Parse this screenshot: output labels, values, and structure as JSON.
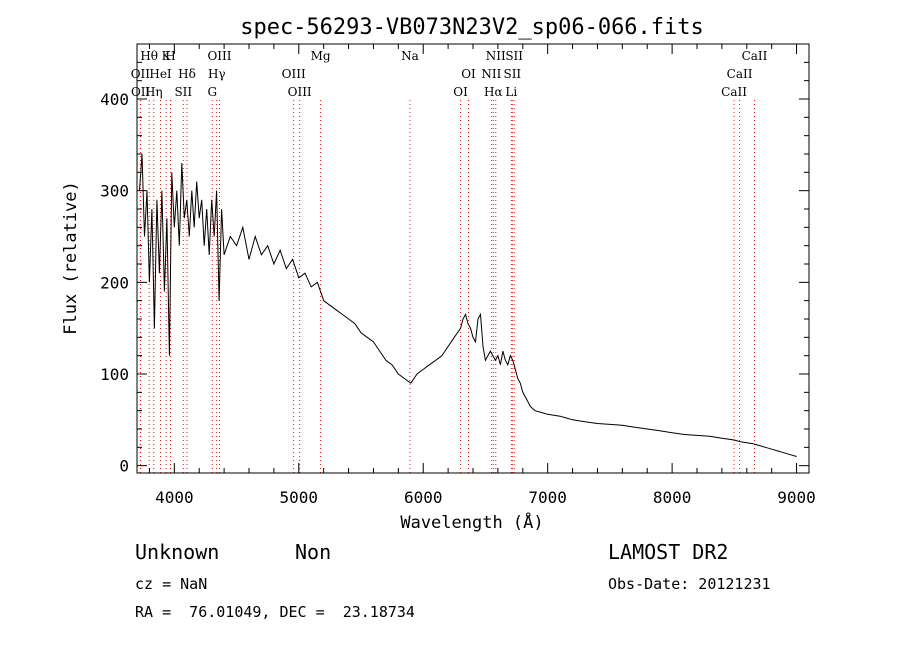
{
  "chart_data": {
    "type": "line",
    "title": "spec-56293-VB073N23V2_sp06-066.fits",
    "xlabel": "Wavelength (Å)",
    "ylabel": "Flux (relative)",
    "xlim": [
      3700,
      9100
    ],
    "ylim": [
      -8,
      460
    ],
    "xticks": [
      4000,
      5000,
      6000,
      7000,
      8000,
      9000
    ],
    "yticks": [
      0,
      100,
      200,
      300,
      400
    ],
    "grid": false,
    "spectrum": {
      "x": [
        3720,
        3740,
        3760,
        3780,
        3800,
        3820,
        3840,
        3860,
        3880,
        3900,
        3920,
        3940,
        3960,
        3980,
        4000,
        4020,
        4040,
        4060,
        4080,
        4100,
        4120,
        4140,
        4160,
        4180,
        4200,
        4220,
        4240,
        4260,
        4280,
        4300,
        4320,
        4340,
        4360,
        4380,
        4400,
        4450,
        4500,
        4550,
        4600,
        4650,
        4700,
        4750,
        4800,
        4850,
        4900,
        4950,
        5000,
        5050,
        5100,
        5150,
        5200,
        5250,
        5300,
        5350,
        5400,
        5450,
        5500,
        5550,
        5600,
        5650,
        5700,
        5750,
        5800,
        5850,
        5900,
        5950,
        6000,
        6050,
        6100,
        6150,
        6200,
        6250,
        6300,
        6320,
        6340,
        6360,
        6380,
        6400,
        6420,
        6440,
        6460,
        6480,
        6500,
        6520,
        6540,
        6560,
        6580,
        6600,
        6620,
        6640,
        6660,
        6680,
        6700,
        6720,
        6740,
        6760,
        6780,
        6800,
        6820,
        6840,
        6860,
        6880,
        6900,
        6950,
        7000,
        7050,
        7100,
        7150,
        7200,
        7300,
        7400,
        7500,
        7600,
        7700,
        7800,
        7900,
        8000,
        8100,
        8200,
        8300,
        8400,
        8500,
        8550,
        8600,
        8650,
        8700,
        8750,
        8800,
        8850,
        8900,
        8950,
        9000
      ],
      "y": [
        300,
        340,
        250,
        300,
        200,
        280,
        150,
        290,
        210,
        300,
        190,
        270,
        120,
        320,
        260,
        300,
        240,
        330,
        270,
        290,
        250,
        300,
        260,
        310,
        270,
        290,
        240,
        280,
        230,
        290,
        250,
        300,
        180,
        280,
        230,
        250,
        240,
        260,
        225,
        250,
        230,
        240,
        220,
        235,
        215,
        225,
        205,
        210,
        195,
        200,
        180,
        175,
        170,
        165,
        160,
        155,
        145,
        140,
        135,
        125,
        115,
        110,
        100,
        95,
        90,
        100,
        105,
        110,
        115,
        120,
        130,
        140,
        150,
        160,
        165,
        155,
        150,
        140,
        135,
        160,
        165,
        130,
        115,
        120,
        125,
        120,
        115,
        120,
        110,
        125,
        115,
        110,
        120,
        115,
        105,
        95,
        90,
        80,
        75,
        70,
        65,
        62,
        60,
        58,
        56,
        55,
        54,
        52,
        50,
        48,
        46,
        45,
        44,
        42,
        40,
        38,
        36,
        34,
        33,
        32,
        30,
        28,
        26,
        25,
        24,
        22,
        20,
        18,
        16,
        14,
        12,
        10
      ]
    },
    "line_markers": [
      {
        "label": "Hθ",
        "x": 3798
      },
      {
        "label": "OII",
        "x": 3727
      },
      {
        "label": "OII",
        "x": 3729
      },
      {
        "label": "K",
        "x": 3934
      },
      {
        "label": "HeI",
        "x": 3889
      },
      {
        "label": "Hη",
        "x": 3835
      },
      {
        "label": "H",
        "x": 3969
      },
      {
        "label": "Hδ",
        "x": 4102
      },
      {
        "label": "SII",
        "x": 4072
      },
      {
        "label": "OIII",
        "x": 4363
      },
      {
        "label": "Hγ",
        "x": 4341
      },
      {
        "label": "G",
        "x": 4305
      },
      {
        "label": "Mg",
        "x": 5175
      },
      {
        "label": "OIII",
        "x": 4959
      },
      {
        "label": "OIII",
        "x": 5007
      },
      {
        "label": "Na",
        "x": 5893
      },
      {
        "label": "OI",
        "x": 6364
      },
      {
        "label": "OI",
        "x": 6300
      },
      {
        "label": "NII",
        "x": 6583
      },
      {
        "label": "SII",
        "x": 6716
      },
      {
        "label": "Hα",
        "x": 6563
      },
      {
        "label": "SII",
        "x": 6731
      },
      {
        "label": "NII",
        "x": 6548
      },
      {
        "label": "Li",
        "x": 6708
      },
      {
        "label": "CaII",
        "x": 8662
      },
      {
        "label": "CaII",
        "x": 8542
      },
      {
        "label": "CaII",
        "x": 8498
      }
    ]
  },
  "info": {
    "classification": "Unknown",
    "subclass": "Non",
    "survey": "LAMOST DR2",
    "redshift": "cz = NaN",
    "obs_date": "Obs-Date: 20121231",
    "coords": "RA =  76.01049, DEC =  23.18734"
  },
  "colors": {
    "line_marker": "#d02020",
    "spectrum": "#000000"
  }
}
